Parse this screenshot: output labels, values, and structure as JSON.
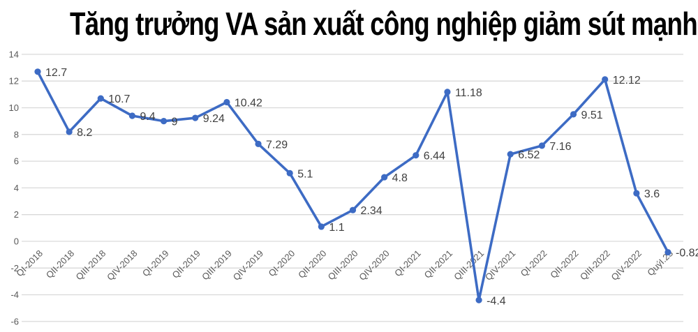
{
  "chart_data": {
    "type": "line",
    "title": "Tăng trưởng VA sản xuất công nghiệp giảm sút mạnh",
    "categories": [
      "QI-2018",
      "QII-2018",
      "QIII-2018",
      "QIV-2018",
      "QI-2019",
      "QII-2019",
      "QIII-2019",
      "QIV-2019",
      "QI-2020",
      "QII-2020",
      "QIII-2020",
      "QIV-2020",
      "QI-2021",
      "QII-2021",
      "QIII-2021",
      "QIV-2021",
      "QI-2022",
      "QII-2022",
      "QIII-2022",
      "QIV-2022",
      "QuýI.23"
    ],
    "values": [
      12.7,
      8.2,
      10.7,
      9.4,
      9,
      9.24,
      10.42,
      7.29,
      5.1,
      1.1,
      2.34,
      4.8,
      6.44,
      11.18,
      -4.4,
      6.52,
      7.16,
      9.51,
      12.12,
      3.6,
      -0.82
    ],
    "data_labels": [
      "12.7",
      "8.2",
      "10.7",
      "9.4",
      "9",
      "9.24",
      "10.42",
      "7.29",
      "5.1",
      "1.1",
      "2.34",
      "4.8",
      "6.44",
      "11.18",
      "-4.4",
      "6.52",
      "7.16",
      "9.51",
      "12.12",
      "3.6",
      "-0.82"
    ],
    "yticks": [
      14,
      12,
      10,
      8,
      6,
      4,
      2,
      0,
      -2,
      -4,
      -6
    ],
    "ylim": [
      -6,
      14
    ],
    "grid": true,
    "legend": "none",
    "xlabel": "",
    "ylabel": "",
    "colors": {
      "line": "#3d6bc4",
      "marker": "#3d6bc4",
      "gridline": "#d9d9d9",
      "axis_text": "#595959",
      "data_label_text": "#3f3f3f",
      "title_text": "#000000",
      "background": "#ffffff"
    }
  }
}
